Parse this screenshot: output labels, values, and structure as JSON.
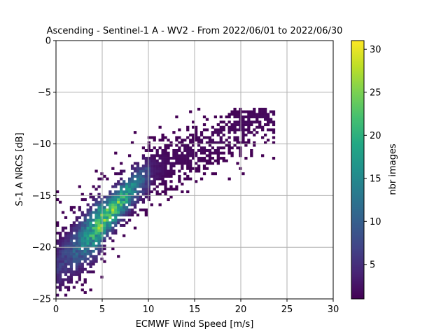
{
  "chart_data": {
    "type": "heatmap",
    "title": "Ascending - Sentinel-1 A - WV2 - From 2022/06/01 to 2022/06/30",
    "xlabel": "ECMWF Wind Speed [m/s]",
    "ylabel": "S-1 A NRCS [dB]",
    "xlim": [
      0,
      30
    ],
    "ylim": [
      -25,
      0
    ],
    "xticks": [
      "0",
      "5",
      "10",
      "15",
      "20",
      "25",
      "30"
    ],
    "yticks": [
      "0",
      "−5",
      "−10",
      "−15",
      "−20",
      "−25"
    ],
    "grid": true,
    "colorbar": {
      "label": "nbr images",
      "range": [
        1,
        31
      ],
      "ticks": [
        "5",
        "10",
        "15",
        "20",
        "25",
        "30"
      ],
      "colormap": "viridis"
    },
    "bin_size": {
      "x": 0.3,
      "y": 0.25
    },
    "density_ridge": {
      "description_points": [
        {
          "x": 1,
          "y": -21.0
        },
        {
          "x": 4,
          "y": -18.5
        },
        {
          "x": 6,
          "y": -16.5
        },
        {
          "x": 8,
          "y": -14.5
        },
        {
          "x": 10,
          "y": -13.0
        },
        {
          "x": 14,
          "y": -11.0
        },
        {
          "x": 18,
          "y": -9.5
        },
        {
          "x": 22,
          "y": -7.5
        }
      ],
      "peak_count": 31,
      "peak_location": {
        "x": 5.5,
        "y": -17.5
      }
    }
  }
}
